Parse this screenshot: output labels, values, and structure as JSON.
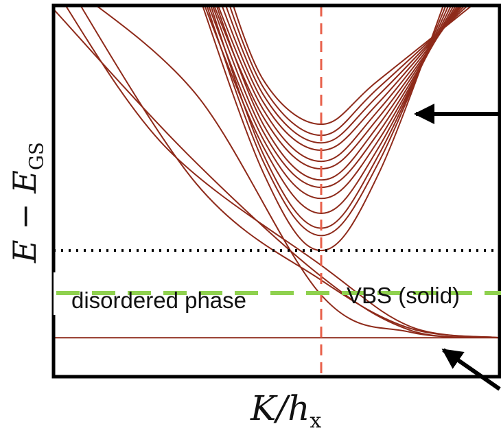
{
  "chart_data": {
    "type": "line",
    "title": "",
    "xlabel": {
      "main": "K/h",
      "sub": "x"
    },
    "ylabel": {
      "main": "E − E",
      "sub": "GS"
    },
    "xlim": [
      0,
      1
    ],
    "ylim": [
      0,
      1
    ],
    "ticks": "none",
    "grid": false,
    "critical_point_x": 0.6,
    "gap_level_y": 0.34,
    "ground_state_y": 0.105,
    "colors": {
      "levels": "#8e2a1a",
      "critical_line": "#e8604a",
      "gap_line": "#000000",
      "phase_boundary": "#8fd14f",
      "frame": "#000000",
      "arrows": "#000000"
    },
    "regions": {
      "left": "disordered phase",
      "right": "VBS (solid)"
    },
    "series": [
      {
        "x": [
          0.0,
          0.32,
          0.6,
          0.8,
          1.0
        ],
        "values": [
          1.12,
          0.52,
          0.26,
          0.13,
          0.105
        ]
      },
      {
        "x": [
          0.0,
          0.25,
          0.6,
          0.8,
          1.0
        ],
        "values": [
          1.05,
          0.62,
          0.3,
          0.135,
          0.105
        ]
      },
      {
        "x": [
          0.0,
          0.3,
          0.6,
          0.8,
          1.0
        ],
        "values": [
          0.99,
          0.6,
          0.27,
          0.125,
          0.105
        ]
      },
      {
        "x": [
          0.03,
          0.32,
          0.6,
          0.8,
          1.0
        ],
        "values": [
          1.06,
          0.76,
          0.22,
          0.12,
          0.105
        ]
      },
      {
        "x": [
          0.3,
          0.47,
          0.6,
          0.73,
          0.91
        ],
        "values": [
          1.12,
          0.55,
          0.34,
          0.55,
          1.12
        ]
      },
      {
        "x": [
          0.31,
          0.47,
          0.6,
          0.73,
          0.92
        ],
        "values": [
          1.12,
          0.58,
          0.38,
          0.58,
          1.12
        ]
      },
      {
        "x": [
          0.32,
          0.47,
          0.6,
          0.73,
          0.93
        ],
        "values": [
          1.12,
          0.6,
          0.4,
          0.6,
          1.12
        ]
      },
      {
        "x": [
          0.3,
          0.47,
          0.6,
          0.73,
          0.94
        ],
        "values": [
          1.12,
          0.62,
          0.44,
          0.62,
          1.12
        ]
      },
      {
        "x": [
          0.31,
          0.47,
          0.6,
          0.73,
          0.95
        ],
        "values": [
          1.12,
          0.64,
          0.48,
          0.64,
          1.12
        ]
      },
      {
        "x": [
          0.32,
          0.47,
          0.6,
          0.73,
          0.96
        ],
        "values": [
          1.12,
          0.66,
          0.51,
          0.66,
          1.12
        ]
      },
      {
        "x": [
          0.33,
          0.47,
          0.6,
          0.73,
          0.97
        ],
        "values": [
          1.12,
          0.68,
          0.53,
          0.68,
          1.12
        ]
      },
      {
        "x": [
          0.32,
          0.47,
          0.6,
          0.73,
          0.98
        ],
        "values": [
          1.12,
          0.7,
          0.56,
          0.7,
          1.12
        ]
      },
      {
        "x": [
          0.33,
          0.47,
          0.6,
          0.73,
          0.99
        ],
        "values": [
          1.12,
          0.72,
          0.58,
          0.72,
          1.12
        ]
      },
      {
        "x": [
          0.34,
          0.47,
          0.6,
          0.73,
          1.0
        ],
        "values": [
          1.12,
          0.74,
          0.61,
          0.74,
          1.12
        ]
      },
      {
        "x": [
          0.35,
          0.47,
          0.6,
          0.73,
          1.0
        ],
        "values": [
          1.12,
          0.76,
          0.63,
          0.76,
          1.1
        ]
      },
      {
        "x": [
          0.36,
          0.47,
          0.6,
          0.73,
          1.0
        ],
        "values": [
          1.12,
          0.78,
          0.65,
          0.78,
          1.08
        ]
      },
      {
        "x": [
          0.37,
          0.47,
          0.6,
          0.73,
          1.0
        ],
        "values": [
          1.12,
          0.8,
          0.68,
          0.8,
          1.06
        ]
      }
    ]
  }
}
